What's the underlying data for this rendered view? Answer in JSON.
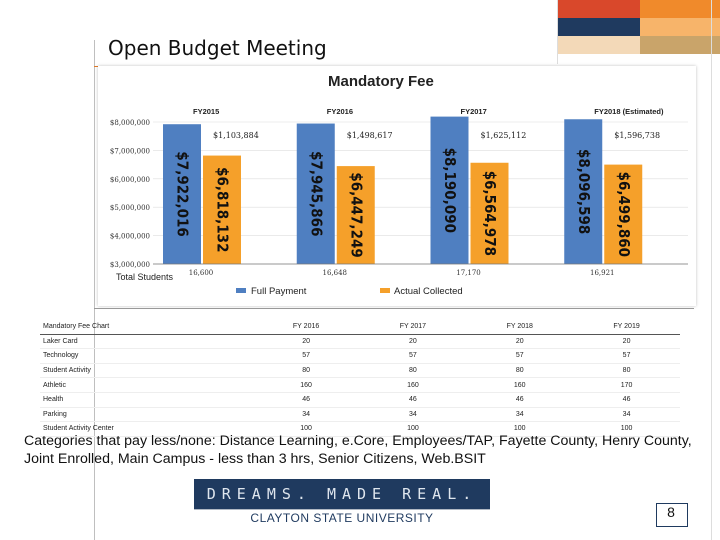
{
  "slide": {
    "title": "Open Budget Meeting",
    "page_number": "8",
    "note": "Categories that pay less/none: Distance Learning, e.Core, Employees/TAP, Fayette County, Henry County, Joint Enrolled, Main Campus - less than 3 hrs, Senior Citizens, Web.BSIT",
    "logo_tagline": "DREAMS. MADE REAL.",
    "logo_name": "CLAYTON STATE UNIVERSITY"
  },
  "colors": {
    "full_payment": "#4f7fc1",
    "actual_collected": "#f5a02a",
    "deco_orange": "#f08a2b",
    "deco_red": "#d9482b",
    "deco_navy": "#1f3a5f",
    "deco_tan": "#c9a46a"
  },
  "chart_data": {
    "type": "bar",
    "title": "Mandatory Fee",
    "categories": [
      "FY2015",
      "FY2016",
      "FY2017",
      "FY2018 (Estimated)"
    ],
    "series": [
      {
        "name": "Full Payment",
        "values": [
          7922016,
          7945866,
          8190090,
          8096598
        ],
        "labels": [
          "$7,922,016",
          "$7,945,866",
          "$8,190,090",
          "$8,096,598"
        ]
      },
      {
        "name": "Actual Collected",
        "values": [
          6818132,
          6447249,
          6564978,
          6499860
        ],
        "labels": [
          "$6,818,132",
          "$6,447,249",
          "$6,564,978",
          "$6,499,860"
        ]
      }
    ],
    "differences": [
      "$1,103,884",
      "$1,498,617",
      "$1,625,112",
      "$1,596,738"
    ],
    "total_students_label": "Total Students",
    "total_students": [
      "16,600",
      "16,648",
      "17,170",
      "16,921"
    ],
    "y_ticks": [
      "$8,000,000",
      "$7,000,000",
      "$6,000,000",
      "$5,000,000",
      "$4,000,000",
      "$3,000,000"
    ],
    "ylim": [
      3000000,
      8000000
    ],
    "legend_position": "bottom"
  },
  "fee_table": {
    "header": [
      "Mandatory Fee Chart",
      "FY 2016",
      "FY 2017",
      "FY 2018",
      "FY 2019"
    ],
    "rows": [
      [
        "Laker Card",
        "20",
        "20",
        "20",
        "20"
      ],
      [
        "Technology",
        "57",
        "57",
        "57",
        "57"
      ],
      [
        "Student Activity",
        "80",
        "80",
        "80",
        "80"
      ],
      [
        "Athletic",
        "160",
        "160",
        "160",
        "170"
      ],
      [
        "Health",
        "46",
        "46",
        "46",
        "46"
      ],
      [
        "Parking",
        "34",
        "34",
        "34",
        "34"
      ],
      [
        "Student Activity Center",
        "100",
        "100",
        "100",
        "100"
      ]
    ]
  }
}
